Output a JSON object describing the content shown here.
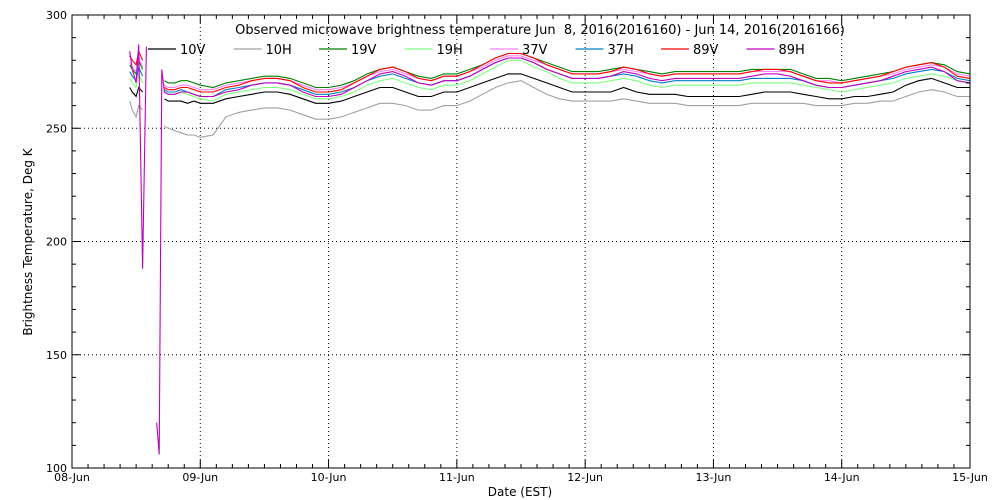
{
  "chart_data": {
    "type": "line",
    "title": "Observed microwave brightness temperature Jun  8, 2016(2016160) - Jun 14, 2016(2016166)",
    "xlabel": "Date (EST)",
    "ylabel": "Brightness Temperature, Deg K",
    "ylim": [
      100,
      300
    ],
    "xlim": [
      0,
      7
    ],
    "x_ticks": [
      {
        "value": 0,
        "label": "08-Jun"
      },
      {
        "value": 1,
        "label": "09-Jun"
      },
      {
        "value": 2,
        "label": "10-Jun"
      },
      {
        "value": 3,
        "label": "11-Jun"
      },
      {
        "value": 4,
        "label": "12-Jun"
      },
      {
        "value": 5,
        "label": "13-Jun"
      },
      {
        "value": 6,
        "label": "14-Jun"
      },
      {
        "value": 7,
        "label": "15-Jun"
      }
    ],
    "y_ticks": [
      {
        "value": 100,
        "label": "100"
      },
      {
        "value": 150,
        "label": "150"
      },
      {
        "value": 200,
        "label": "200"
      },
      {
        "value": 250,
        "label": "250"
      },
      {
        "value": 300,
        "label": "300"
      }
    ],
    "grid": true,
    "legend_position": "top",
    "x": [
      0.4,
      0.42,
      0.45,
      0.47,
      0.5,
      0.52,
      0.55,
      0.58,
      0.6,
      0.62,
      0.64,
      0.66,
      0.68,
      0.7,
      0.72,
      0.75,
      0.8,
      0.85,
      0.9,
      0.95,
      1.0,
      1.1,
      1.2,
      1.3,
      1.4,
      1.5,
      1.6,
      1.7,
      1.8,
      1.9,
      2.0,
      2.1,
      2.2,
      2.3,
      2.4,
      2.5,
      2.6,
      2.7,
      2.8,
      2.9,
      3.0,
      3.1,
      3.2,
      3.3,
      3.4,
      3.5,
      3.6,
      3.7,
      3.8,
      3.9,
      4.0,
      4.1,
      4.2,
      4.3,
      4.4,
      4.5,
      4.6,
      4.7,
      4.8,
      4.9,
      5.0,
      5.1,
      5.2,
      5.3,
      5.4,
      5.5,
      5.6,
      5.7,
      5.8,
      5.9,
      6.0,
      6.1,
      6.2,
      6.3,
      6.4,
      6.5,
      6.6,
      6.7,
      6.8,
      6.9,
      7.0
    ],
    "series": [
      {
        "name": "10V",
        "color": "#000000",
        "values": [
          null,
          null,
          268,
          266,
          264,
          268,
          266,
          null,
          null,
          null,
          null,
          null,
          null,
          null,
          263,
          262,
          262,
          262,
          261,
          262,
          261,
          261,
          263,
          264,
          265,
          266,
          266,
          265,
          263,
          261,
          261,
          262,
          264,
          266,
          268,
          268,
          266,
          264,
          264,
          266,
          266,
          268,
          270,
          272,
          274,
          274,
          272,
          270,
          268,
          266,
          266,
          266,
          266,
          268,
          266,
          265,
          265,
          265,
          264,
          264,
          264,
          264,
          264,
          265,
          266,
          266,
          266,
          265,
          264,
          263,
          263,
          264,
          264,
          265,
          266,
          269,
          271,
          272,
          270,
          268,
          268
        ]
      },
      {
        "name": "10H",
        "color": "#a0a0a0",
        "values": [
          null,
          null,
          262,
          258,
          255,
          260,
          258,
          null,
          null,
          null,
          null,
          null,
          null,
          null,
          251,
          250,
          249,
          248,
          247,
          247,
          246,
          247,
          255,
          257,
          258,
          259,
          259,
          258,
          256,
          254,
          254,
          255,
          257,
          259,
          261,
          261,
          260,
          258,
          258,
          260,
          260,
          262,
          265,
          268,
          270,
          271,
          268,
          265,
          263,
          262,
          262,
          262,
          262,
          263,
          262,
          261,
          261,
          261,
          260,
          260,
          260,
          260,
          260,
          261,
          261,
          261,
          261,
          261,
          260,
          260,
          260,
          261,
          261,
          262,
          262,
          264,
          266,
          267,
          266,
          264,
          264
        ]
      },
      {
        "name": "19V",
        "color": "#008000",
        "values": [
          null,
          null,
          278,
          276,
          274,
          280,
          276,
          null,
          null,
          null,
          null,
          null,
          null,
          null,
          271,
          270,
          270,
          271,
          271,
          270,
          269,
          268,
          270,
          271,
          272,
          273,
          273,
          272,
          270,
          268,
          268,
          269,
          271,
          274,
          276,
          277,
          275,
          273,
          272,
          274,
          274,
          276,
          278,
          281,
          283,
          283,
          281,
          279,
          277,
          275,
          275,
          275,
          276,
          277,
          276,
          275,
          274,
          275,
          275,
          275,
          275,
          275,
          275,
          276,
          276,
          276,
          276,
          274,
          272,
          272,
          271,
          272,
          273,
          274,
          275,
          277,
          278,
          279,
          278,
          275,
          274
        ]
      },
      {
        "name": "19H",
        "color": "#80ff80",
        "values": [
          null,
          null,
          272,
          270,
          268,
          274,
          270,
          null,
          null,
          null,
          null,
          null,
          null,
          null,
          266,
          265,
          265,
          266,
          265,
          264,
          263,
          262,
          265,
          266,
          267,
          268,
          268,
          267,
          265,
          263,
          263,
          264,
          266,
          269,
          271,
          272,
          270,
          268,
          267,
          269,
          269,
          271,
          274,
          277,
          280,
          280,
          277,
          275,
          272,
          270,
          270,
          270,
          271,
          272,
          271,
          269,
          268,
          269,
          269,
          269,
          269,
          269,
          269,
          270,
          270,
          270,
          270,
          269,
          268,
          267,
          266,
          267,
          268,
          269,
          270,
          272,
          273,
          274,
          273,
          271,
          270
        ]
      },
      {
        "name": "37V",
        "color": "#ff80ff",
        "values": [
          null,
          null,
          279,
          277,
          275,
          281,
          277,
          null,
          null,
          null,
          null,
          null,
          null,
          null,
          269,
          268,
          268,
          269,
          269,
          268,
          267,
          267,
          269,
          270,
          271,
          272,
          272,
          271,
          269,
          267,
          267,
          268,
          270,
          273,
          275,
          276,
          274,
          272,
          271,
          273,
          273,
          275,
          277,
          280,
          282,
          282,
          280,
          278,
          276,
          274,
          274,
          274,
          275,
          276,
          275,
          274,
          273,
          274,
          274,
          274,
          274,
          274,
          274,
          275,
          275,
          275,
          275,
          273,
          271,
          271,
          270,
          271,
          272,
          273,
          274,
          276,
          277,
          278,
          277,
          274,
          273
        ]
      },
      {
        "name": "37H",
        "color": "#0080c0",
        "values": [
          null,
          null,
          275,
          273,
          271,
          277,
          273,
          null,
          null,
          null,
          null,
          null,
          null,
          null,
          267,
          266,
          266,
          267,
          266,
          265,
          264,
          264,
          267,
          268,
          269,
          270,
          270,
          269,
          267,
          265,
          265,
          266,
          268,
          271,
          273,
          274,
          272,
          270,
          269,
          271,
          271,
          273,
          276,
          279,
          281,
          281,
          279,
          276,
          274,
          272,
          272,
          272,
          273,
          274,
          273,
          271,
          270,
          271,
          271,
          271,
          271,
          271,
          271,
          272,
          272,
          272,
          272,
          271,
          269,
          268,
          268,
          269,
          270,
          271,
          272,
          274,
          275,
          276,
          275,
          272,
          271
        ]
      },
      {
        "name": "89V",
        "color": "#ff0000",
        "values": [
          null,
          null,
          282,
          280,
          278,
          284,
          280,
          null,
          null,
          null,
          null,
          null,
          null,
          null,
          268,
          267,
          267,
          268,
          268,
          267,
          266,
          266,
          268,
          269,
          271,
          272,
          272,
          271,
          268,
          266,
          266,
          267,
          270,
          273,
          276,
          277,
          275,
          272,
          271,
          273,
          273,
          275,
          278,
          281,
          283,
          283,
          281,
          278,
          276,
          274,
          274,
          274,
          275,
          277,
          276,
          274,
          273,
          274,
          274,
          274,
          274,
          274,
          274,
          275,
          276,
          276,
          275,
          273,
          271,
          270,
          270,
          271,
          272,
          273,
          275,
          277,
          278,
          279,
          277,
          273,
          272
        ]
      },
      {
        "name": "89H",
        "color": "#c000c0",
        "values": [
          null,
          null,
          284,
          276,
          270,
          287,
          188,
          286,
          null,
          null,
          null,
          120,
          106,
          276,
          266,
          265,
          265,
          266,
          266,
          265,
          264,
          264,
          266,
          267,
          269,
          270,
          270,
          269,
          266,
          264,
          264,
          265,
          268,
          271,
          274,
          275,
          273,
          270,
          269,
          271,
          271,
          273,
          276,
          279,
          281,
          281,
          279,
          276,
          274,
          272,
          272,
          272,
          273,
          275,
          274,
          272,
          271,
          272,
          272,
          272,
          272,
          272,
          272,
          273,
          274,
          274,
          273,
          271,
          269,
          268,
          268,
          269,
          270,
          271,
          273,
          275,
          276,
          277,
          275,
          271,
          270
        ]
      }
    ]
  }
}
